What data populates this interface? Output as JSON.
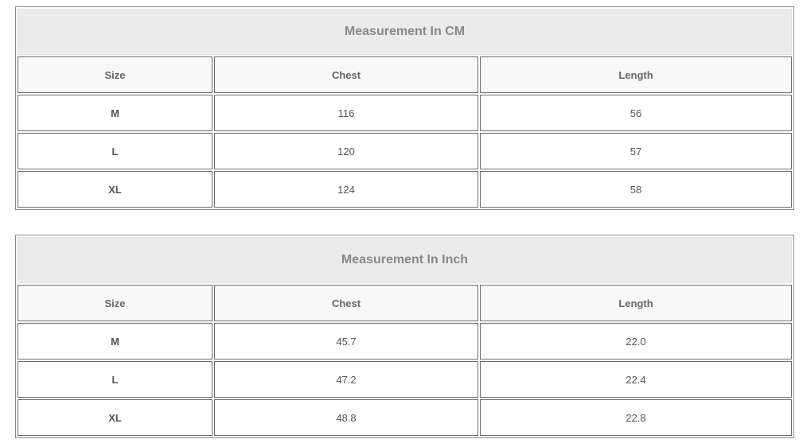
{
  "tables": [
    {
      "title": "Measurement In CM",
      "headers": [
        "Size",
        "Chest",
        "Length"
      ],
      "rows": [
        [
          "M",
          "116",
          "56"
        ],
        [
          "L",
          "120",
          "57"
        ],
        [
          "XL",
          "124",
          "58"
        ]
      ]
    },
    {
      "title": "Measurement In Inch",
      "headers": [
        "Size",
        "Chest",
        "Length"
      ],
      "rows": [
        [
          "M",
          "45.7",
          "22.0"
        ],
        [
          "L",
          "47.2",
          "22.4"
        ],
        [
          "XL",
          "48.8",
          "22.8"
        ]
      ]
    }
  ]
}
